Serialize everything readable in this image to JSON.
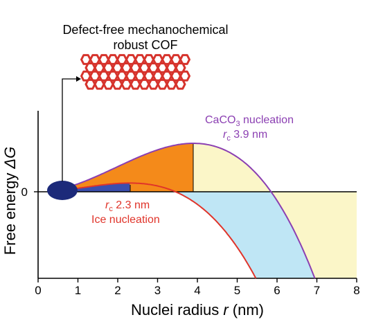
{
  "colors": {
    "axis": "#000000",
    "ice_curve": "#e0342a",
    "caco3_curve": "#8b3fb2",
    "orange_fill": "#f48a1a",
    "light_blue_fill": "#bfe6f5",
    "light_yellow_fill": "#fbf6c8",
    "dark_blue_fill": "#3b4fae",
    "cof_red": "#d6332c",
    "navy_ellipse": "#1c2a7a"
  },
  "cof_label": {
    "line1": "Defect-free mechanochemical",
    "line2": "robust COF"
  },
  "caco3_annotation": {
    "prefix": "CaCO",
    "subscript": "3",
    "suffix": " nucleation",
    "rc_symbol": "r",
    "rc_sub": "c",
    "rc_value": " 3.9 nm"
  },
  "ice_annotation": {
    "rc_symbol": "r",
    "rc_sub": "c",
    "rc_value": " 2.3 nm",
    "label": "Ice nucleation"
  },
  "chart_data": {
    "type": "line",
    "xlabel_text": "Nuclei radius ",
    "xlabel_symbol": "r",
    "xlabel_unit": " (nm)",
    "ylabel_text": "Free energy ",
    "ylabel_symbol": "ΔG",
    "xlim": [
      0,
      8
    ],
    "x_ticks": [
      "0",
      "1",
      "2",
      "3",
      "4",
      "5",
      "6",
      "7",
      "8"
    ],
    "y_ticks": [
      "0"
    ],
    "series": [
      {
        "name": "CaCO3 nucleation",
        "critical_radius": 3.9,
        "peak": 1.0,
        "zero_crossing": 5.85
      },
      {
        "name": "Ice nucleation",
        "critical_radius": 2.3,
        "peak": 0.18,
        "zero_crossing": 3.45
      }
    ]
  }
}
